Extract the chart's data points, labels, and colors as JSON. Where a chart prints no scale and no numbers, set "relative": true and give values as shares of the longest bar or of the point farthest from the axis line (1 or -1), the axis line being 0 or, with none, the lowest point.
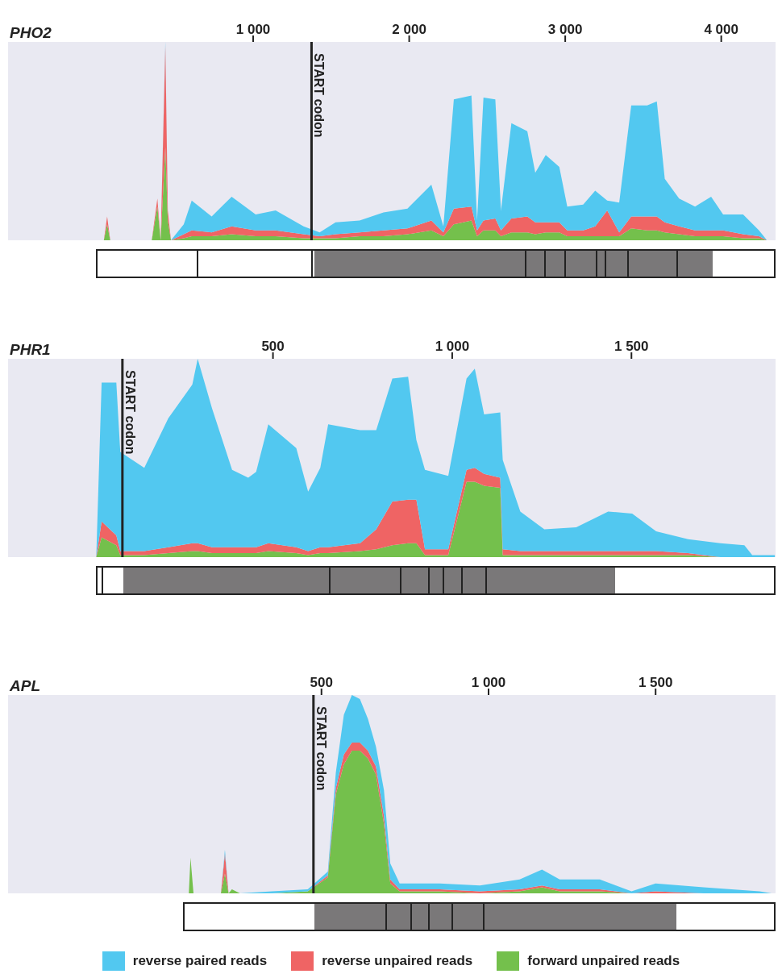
{
  "chart_data": [
    {
      "type": "area",
      "title": "PHO2",
      "stacked": true,
      "relative": true,
      "legend": false,
      "x": [
        43,
        64,
        84,
        350,
        386,
        407,
        437,
        453,
        473,
        555,
        606,
        734,
        862,
        1016,
        1144,
        1323,
        1426,
        1528,
        1682,
        1835,
        1989,
        2142,
        2219,
        2286,
        2399,
        2435,
        2476,
        2552,
        2588,
        2655,
        2757,
        2808,
        2875,
        2962,
        3013,
        3115,
        3192,
        3269,
        3346,
        3423,
        3525,
        3587,
        3638,
        3730,
        3832,
        3935,
        4012,
        4140,
        4242,
        4293
      ],
      "xlim": [
        -571,
        4348
      ],
      "xticks": [
        {
          "value": 1000,
          "label": "1 000"
        },
        {
          "value": 2000,
          "label": "2 000"
        },
        {
          "value": 3000,
          "label": "3 000"
        },
        {
          "value": 4000,
          "label": "4 000"
        }
      ],
      "ref_lines": [
        {
          "axis": "x",
          "value": 1374,
          "label": "START codon"
        }
      ],
      "series": [
        {
          "color": "#74c04c",
          "values": [
            0,
            0.08,
            0,
            0,
            0.17,
            0,
            0.47,
            0.1,
            0,
            0.01,
            0.02,
            0.02,
            0.03,
            0.02,
            0.02,
            0.01,
            0.01,
            0.01,
            0.02,
            0.02,
            0.03,
            0.05,
            0.02,
            0.08,
            0.1,
            0.02,
            0.05,
            0.05,
            0.02,
            0.04,
            0.04,
            0.03,
            0.04,
            0.04,
            0.02,
            0.02,
            0.02,
            0.02,
            0.02,
            0.06,
            0.05,
            0.05,
            0.04,
            0.03,
            0.02,
            0.02,
            0.02,
            0.01,
            0.01,
            0
          ]
        },
        {
          "color": "#ef6464",
          "values": [
            0,
            0.04,
            0,
            0,
            0.04,
            0,
            0.51,
            0.05,
            0,
            0.02,
            0.03,
            0.02,
            0.04,
            0.03,
            0.03,
            0.02,
            0.01,
            0.02,
            0.02,
            0.03,
            0.03,
            0.05,
            0.02,
            0.08,
            0.07,
            0.03,
            0.05,
            0.06,
            0.03,
            0.07,
            0.08,
            0.06,
            0.05,
            0.05,
            0.03,
            0.03,
            0.05,
            0.13,
            0.02,
            0.06,
            0.07,
            0.07,
            0.05,
            0.04,
            0.03,
            0.03,
            0.03,
            0.02,
            0.01,
            0
          ]
        },
        {
          "color": "#52c8f0",
          "values": [
            0,
            0,
            0,
            0,
            0,
            0,
            0.02,
            0,
            0,
            0.05,
            0.15,
            0.08,
            0.15,
            0.08,
            0.1,
            0.04,
            0.02,
            0.06,
            0.06,
            0.09,
            0.1,
            0.18,
            0.03,
            0.55,
            0.56,
            0.05,
            0.62,
            0.6,
            0.1,
            0.48,
            0.43,
            0.25,
            0.34,
            0.28,
            0.12,
            0.13,
            0.18,
            0.05,
            0.15,
            0.56,
            0.56,
            0.58,
            0.22,
            0.14,
            0.12,
            0.17,
            0.08,
            0.1,
            0.03,
            0
          ]
        }
      ]
    },
    {
      "type": "area",
      "title": "PHR1",
      "stacked": true,
      "relative": true,
      "legend": false,
      "x": [
        7,
        22,
        63,
        74,
        141,
        208,
        275,
        290,
        330,
        386,
        431,
        453,
        487,
        565,
        598,
        632,
        654,
        743,
        788,
        833,
        877,
        900,
        924,
        989,
        1040,
        1063,
        1089,
        1134,
        1141,
        1190,
        1257,
        1346,
        1435,
        1502,
        1569,
        1658,
        1748,
        1815,
        1837,
        1900
      ],
      "xlim": [
        -239,
        1902
      ],
      "xticks": [
        500,
        {
          "value": 1000,
          "label": "1 000"
        },
        {
          "value": 1500,
          "label": "1 500"
        }
      ],
      "ref_lines": [
        {
          "axis": "x",
          "value": 80,
          "label": "START codon"
        }
      ],
      "series": [
        {
          "color": "#74c04c",
          "values": [
            0,
            0.1,
            0.06,
            0.01,
            0.01,
            0.02,
            0.03,
            0.03,
            0.02,
            0.02,
            0.02,
            0.02,
            0.03,
            0.02,
            0.01,
            0.02,
            0.02,
            0.03,
            0.04,
            0.06,
            0.07,
            0.07,
            0.01,
            0.01,
            0.38,
            0.38,
            0.36,
            0.35,
            0.01,
            0.01,
            0.01,
            0.01,
            0.01,
            0.01,
            0.01,
            0.01,
            0,
            0,
            0,
            0
          ]
        },
        {
          "color": "#ef6464",
          "values": [
            0,
            0.08,
            0.05,
            0.02,
            0.02,
            0.03,
            0.04,
            0.04,
            0.03,
            0.03,
            0.03,
            0.03,
            0.04,
            0.03,
            0.02,
            0.03,
            0.03,
            0.04,
            0.1,
            0.22,
            0.22,
            0.22,
            0.03,
            0.03,
            0.06,
            0.07,
            0.06,
            0.05,
            0.03,
            0.02,
            0.02,
            0.02,
            0.02,
            0.02,
            0.02,
            0.01,
            0,
            0,
            0,
            0
          ]
        },
        {
          "color": "#52c8f0",
          "values": [
            0,
            0.7,
            0.77,
            0.5,
            0.42,
            0.65,
            0.8,
            0.93,
            0.7,
            0.39,
            0.35,
            0.38,
            0.6,
            0.5,
            0.3,
            0.4,
            0.62,
            0.57,
            0.5,
            0.62,
            0.62,
            0.3,
            0.4,
            0.37,
            0.46,
            0.5,
            0.3,
            0.33,
            0.45,
            0.2,
            0.11,
            0.12,
            0.2,
            0.19,
            0.1,
            0.07,
            0.07,
            0.06,
            0.01,
            0.01
          ]
        }
      ]
    },
    {
      "type": "area",
      "title": "APL",
      "stacked": true,
      "relative": true,
      "legend": "bottom",
      "x": [
        103,
        108,
        117,
        199,
        211,
        222,
        232,
        256,
        352,
        459,
        519,
        543,
        567,
        591,
        615,
        639,
        663,
        687,
        706,
        734,
        854,
        974,
        1093,
        1160,
        1213,
        1333,
        1428,
        1500,
        1644,
        1811,
        1847
      ],
      "xlim": [
        -438,
        1859
      ],
      "xticks": [
        500,
        {
          "value": 1000,
          "label": "1 000"
        },
        {
          "value": 1500,
          "label": "1 500"
        }
      ],
      "ref_lines": [
        {
          "axis": "x",
          "value": 476,
          "label": "START codon"
        }
      ],
      "series": [
        {
          "name": "forward unpaired reads",
          "color": "#74c04c",
          "values": [
            0,
            0.18,
            0,
            0,
            0.1,
            0,
            0.02,
            0,
            0,
            0.01,
            0.08,
            0.5,
            0.65,
            0.72,
            0.72,
            0.68,
            0.6,
            0.35,
            0.05,
            0.01,
            0.01,
            0,
            0.01,
            0.03,
            0.01,
            0.01,
            0,
            0,
            0,
            0,
            0
          ]
        },
        {
          "name": "reverse unpaired reads",
          "color": "#ef6464",
          "values": [
            0,
            0,
            0,
            0,
            0.1,
            0,
            0,
            0,
            0,
            0,
            0.01,
            0.03,
            0.05,
            0.04,
            0.04,
            0.04,
            0.04,
            0.04,
            0.02,
            0.01,
            0.01,
            0.01,
            0.01,
            0.01,
            0.01,
            0.01,
            0,
            0.01,
            0,
            0,
            0
          ]
        },
        {
          "name": "reverse paired reads",
          "color": "#52c8f0",
          "values": [
            0,
            0,
            0,
            0,
            0.02,
            0,
            0,
            0,
            0.01,
            0.01,
            0.02,
            0.08,
            0.2,
            0.24,
            0.22,
            0.16,
            0.1,
            0.13,
            0.08,
            0.03,
            0.03,
            0.03,
            0.05,
            0.08,
            0.05,
            0.05,
            0.01,
            0.04,
            0.03,
            0.01,
            0
          ]
        }
      ]
    }
  ]
}
